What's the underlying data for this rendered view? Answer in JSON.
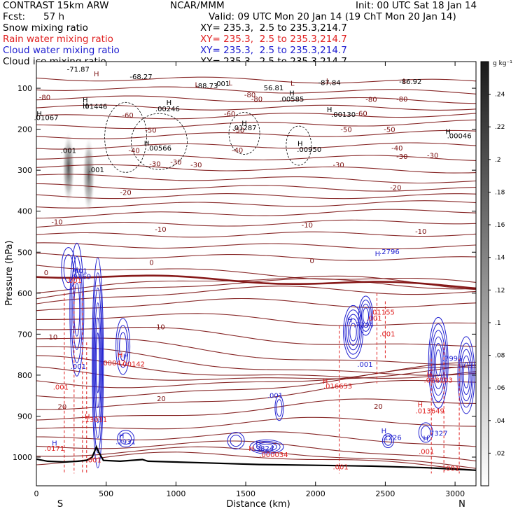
{
  "header": {
    "model": "CONTRAST 15km ARW",
    "org": "NCAR/MMM",
    "init": "Init: 00 UTC Sat 18 Jan 14",
    "fcst_label": "Fcst:",
    "fcst_value": "57 h",
    "valid": "Valid: 09 UTC Mon 20 Jan 14 (19 ChT Mon 20 Jan 14)",
    "fields": [
      {
        "name": "Snow mixing ratio",
        "xy": "XY= 235.3,  2.5 to 235.3,214.7",
        "color": "#000000"
      },
      {
        "name": "Rain water mixing ratio",
        "xy": "XY= 235.3,  2.5 to 235.3,214.7",
        "color": "#e02020"
      },
      {
        "name": "Cloud water mixing ratio",
        "xy": "XY= 235.3,  2.5 to 235.3,214.7",
        "color": "#2020d0"
      },
      {
        "name": "Cloud ice mixing ratio",
        "xy": "XY= 235.3,  2.5 to 235.3,214.7",
        "color": "#000000"
      }
    ]
  },
  "chart_data": {
    "type": "contour cross-section",
    "xlabel": "Distance (km)",
    "ylabel": "Pressure (hPa)",
    "xlim": [
      0,
      3150
    ],
    "ylim": [
      1070,
      35
    ],
    "x_ticks": [
      0,
      500,
      1000,
      1500,
      2000,
      2500,
      3000
    ],
    "y_ticks": [
      100,
      200,
      300,
      400,
      500,
      600,
      700,
      800,
      900,
      1000
    ],
    "x_end_labels": {
      "left": "S",
      "right": "N"
    },
    "colorbar": {
      "unit": "g kg⁻¹",
      "ticks": [
        0.02,
        0.04,
        0.06,
        0.08,
        0.1,
        0.12,
        0.14,
        0.16,
        0.18,
        0.2,
        0.22,
        0.24
      ],
      "tick_labels": [
        ".02",
        ".04",
        ".06",
        ".08",
        ".1",
        ".12",
        ".14",
        ".16",
        ".18",
        ".2",
        ".22",
        ".24"
      ],
      "range": [
        0,
        0.26
      ],
      "colors": [
        "#ffffff",
        "#1a1a1a"
      ]
    },
    "snow_shading": [
      {
        "x": 230,
        "p_top": 205,
        "p_bottom": 385,
        "max": 0.2
      },
      {
        "x": 375,
        "p_top": 215,
        "p_bottom": 410,
        "max": 0.18
      }
    ],
    "temperature_isotherms": {
      "color": "#7a1010",
      "zero_color": "#7a0000",
      "contour_labels": [
        {
          "x": 60,
          "p": 128,
          "t": "-80"
        },
        {
          "x": 655,
          "p": 172,
          "t": "-60"
        },
        {
          "x": 1385,
          "p": 168,
          "t": "-60"
        },
        {
          "x": 2330,
          "p": 167,
          "t": "-60"
        },
        {
          "x": 820,
          "p": 208,
          "t": "-50"
        },
        {
          "x": 1450,
          "p": 208,
          "t": "-50"
        },
        {
          "x": 2220,
          "p": 207,
          "t": "-50"
        },
        {
          "x": 2530,
          "p": 207,
          "t": "-50"
        },
        {
          "x": 1530,
          "p": 122,
          "t": "-80"
        },
        {
          "x": 1580,
          "p": 132,
          "t": "-80"
        },
        {
          "x": 2400,
          "p": 133,
          "t": "-80"
        },
        {
          "x": 2620,
          "p": 132,
          "t": "-80"
        },
        {
          "x": 700,
          "p": 258,
          "t": "-40"
        },
        {
          "x": 1000,
          "p": 286,
          "t": "-30"
        },
        {
          "x": 850,
          "p": 290,
          "t": "-30"
        },
        {
          "x": 2840,
          "p": 270,
          "t": "-30"
        },
        {
          "x": 2585,
          "p": 252,
          "t": "-40"
        },
        {
          "x": 1440,
          "p": 257,
          "t": "-40"
        },
        {
          "x": 1145,
          "p": 293,
          "t": "-30"
        },
        {
          "x": 2165,
          "p": 293,
          "t": "-30"
        },
        {
          "x": 2620,
          "p": 272,
          "t": "-30"
        },
        {
          "x": 640,
          "p": 360,
          "t": "-20"
        },
        {
          "x": 2575,
          "p": 348,
          "t": "-20"
        },
        {
          "x": 148,
          "p": 432,
          "t": "-10"
        },
        {
          "x": 890,
          "p": 450,
          "t": "-10"
        },
        {
          "x": 1940,
          "p": 440,
          "t": "-10"
        },
        {
          "x": 2755,
          "p": 455,
          "t": "-10"
        },
        {
          "x": 70,
          "p": 556,
          "t": "0"
        },
        {
          "x": 825,
          "p": 531,
          "t": "0"
        },
        {
          "x": 1975,
          "p": 527,
          "t": "0"
        },
        {
          "x": 890,
          "p": 688,
          "t": "10"
        },
        {
          "x": 120,
          "p": 713,
          "t": "10"
        },
        {
          "x": 895,
          "p": 863,
          "t": "20"
        },
        {
          "x": 185,
          "p": 883,
          "t": "20"
        },
        {
          "x": 2450,
          "p": 882,
          "t": "20"
        }
      ]
    },
    "cloud_ice_labels": [
      {
        "x": 300,
        "p": 60,
        "t": "-71.87"
      },
      {
        "x": 750,
        "p": 78,
        "t": "-68.27"
      },
      {
        "x": 1220,
        "p": 100,
        "t": "-88.73"
      },
      {
        "x": 1700,
        "p": 105,
        "t": "56.81"
      },
      {
        "x": 2100,
        "p": 92,
        "t": "-87.84"
      },
      {
        "x": 2680,
        "p": 90,
        "t": "-86.92"
      },
      {
        "x": 1330,
        "p": 95,
        "t": ".001"
      },
      {
        "x": 230,
        "p": 258,
        "t": ".001"
      },
      {
        "x": 430,
        "p": 305,
        "t": ".001"
      },
      {
        "x": 70,
        "p": 178,
        "t": ".01067"
      },
      {
        "x": 420,
        "p": 150,
        "t": ".01446"
      },
      {
        "x": 940,
        "p": 156,
        "t": ".00246"
      },
      {
        "x": 1830,
        "p": 132,
        "t": ".00585"
      },
      {
        "x": 2200,
        "p": 170,
        "t": ".00130"
      },
      {
        "x": 1490,
        "p": 202,
        "t": ".01287"
      },
      {
        "x": 880,
        "p": 252,
        "t": ".00566"
      },
      {
        "x": 1955,
        "p": 255,
        "t": ".00950"
      },
      {
        "x": 3030,
        "p": 222,
        "t": ".00046"
      }
    ],
    "cloud_water_labels": [
      {
        "x": 320,
        "p": 565,
        "t": ".9169"
      },
      {
        "x": 310,
        "p": 552,
        "t": ".001"
      },
      {
        "x": 2530,
        "p": 505,
        "t": ".2796"
      },
      {
        "x": 2345,
        "p": 683,
        "t": ".7244"
      },
      {
        "x": 2355,
        "p": 780,
        "t": ".001"
      },
      {
        "x": 300,
        "p": 785,
        "t": ".001"
      },
      {
        "x": 640,
        "p": 968,
        "t": ".2931"
      },
      {
        "x": 1710,
        "p": 856,
        "t": ".001"
      },
      {
        "x": 1630,
        "p": 985,
        "t": ".3824"
      },
      {
        "x": 2545,
        "p": 958,
        "t": ".1226"
      },
      {
        "x": 2875,
        "p": 948,
        "t": ".7327"
      },
      {
        "x": 2980,
        "p": 765,
        "t": ".7995"
      }
    ],
    "rain_labels": [
      {
        "x": 270,
        "p": 575,
        "t": ".001"
      },
      {
        "x": 2420,
        "p": 667,
        "t": ".001"
      },
      {
        "x": 2480,
        "p": 652,
        "t": ".01155"
      },
      {
        "x": 2515,
        "p": 705,
        "t": ".001"
      },
      {
        "x": 550,
        "p": 776,
        "t": ".00047"
      },
      {
        "x": 690,
        "p": 779,
        "t": ".00142"
      },
      {
        "x": 175,
        "p": 835,
        "t": ".001"
      },
      {
        "x": 420,
        "p": 915,
        "t": ".13031"
      },
      {
        "x": 2160,
        "p": 833,
        "t": ".016653"
      },
      {
        "x": 2880,
        "p": 818,
        "t": ".028103"
      },
      {
        "x": 2820,
        "p": 893,
        "t": ".013649"
      },
      {
        "x": 1700,
        "p": 1000,
        "t": ".000034"
      },
      {
        "x": 2795,
        "p": 992,
        "t": ".001"
      },
      {
        "x": 2180,
        "p": 1030,
        "t": ".001"
      },
      {
        "x": 410,
        "p": 1013,
        "t": ".001"
      },
      {
        "x": 130,
        "p": 985,
        "t": ".0171"
      },
      {
        "x": 2975,
        "p": 1033,
        "t": ".001"
      }
    ],
    "max_markers": [
      {
        "x": 430,
        "p": 71,
        "t": "H",
        "c": "#7a1010"
      },
      {
        "x": 350,
        "p": 148,
        "t": "H",
        "c": "#000000"
      },
      {
        "x": 1150,
        "p": 97,
        "t": "L",
        "c": "#7a1010"
      },
      {
        "x": 1390,
        "p": 93,
        "t": "L",
        "c": "#7a1010"
      },
      {
        "x": 1835,
        "p": 94,
        "t": "L",
        "c": "#7a1010"
      },
      {
        "x": 2090,
        "p": 88,
        "t": "L",
        "c": "#7a1010"
      },
      {
        "x": 2640,
        "p": 88,
        "t": "L",
        "c": "#7a1010"
      },
      {
        "x": 20,
        "p": 168,
        "t": "H",
        "c": "#000000"
      },
      {
        "x": 350,
        "p": 135,
        "t": "H",
        "c": "#000000"
      },
      {
        "x": 950,
        "p": 141,
        "t": "H",
        "c": "#000000"
      },
      {
        "x": 1830,
        "p": 118,
        "t": "H",
        "c": "#000000"
      },
      {
        "x": 2100,
        "p": 158,
        "t": "H",
        "c": "#000000"
      },
      {
        "x": 1490,
        "p": 191,
        "t": "H",
        "c": "#000000"
      },
      {
        "x": 790,
        "p": 240,
        "t": "H",
        "c": "#000000"
      },
      {
        "x": 1890,
        "p": 241,
        "t": "H",
        "c": "#000000"
      },
      {
        "x": 2950,
        "p": 212,
        "t": "H",
        "c": "#000000"
      },
      {
        "x": 280,
        "p": 548,
        "t": "H",
        "c": "#2020d0"
      },
      {
        "x": 2445,
        "p": 510,
        "t": "H",
        "c": "#2020d0"
      },
      {
        "x": 2245,
        "p": 671,
        "t": "H",
        "c": "#2020d0"
      },
      {
        "x": 600,
        "p": 757,
        "t": "H",
        "c": "#e02020"
      },
      {
        "x": 640,
        "p": 760,
        "t": "H",
        "c": "#2020d0"
      },
      {
        "x": 2070,
        "p": 821,
        "t": "H",
        "c": "#e02020"
      },
      {
        "x": 2815,
        "p": 804,
        "t": "H",
        "c": "#e02020"
      },
      {
        "x": 2750,
        "p": 878,
        "t": "H",
        "c": "#e02020"
      },
      {
        "x": 365,
        "p": 907,
        "t": "H",
        "c": "#e02020"
      },
      {
        "x": 130,
        "p": 972,
        "t": "H",
        "c": "#2020d0"
      },
      {
        "x": 610,
        "p": 955,
        "t": "H",
        "c": "#2020d0"
      },
      {
        "x": 1590,
        "p": 972,
        "t": "H",
        "c": "#2020d0"
      },
      {
        "x": 1540,
        "p": 985,
        "t": "H",
        "c": "#e02020"
      },
      {
        "x": 2490,
        "p": 942,
        "t": "H",
        "c": "#2020d0"
      },
      {
        "x": 2790,
        "p": 960,
        "t": "H",
        "c": "#2020d0"
      }
    ],
    "terrain_surface_pressure": [
      [
        0,
        1005
      ],
      [
        80,
        1010
      ],
      [
        200,
        1012
      ],
      [
        300,
        1010
      ],
      [
        360,
        1008
      ],
      [
        400,
        1000
      ],
      [
        430,
        975
      ],
      [
        450,
        990
      ],
      [
        480,
        1008
      ],
      [
        600,
        1010
      ],
      [
        760,
        1006
      ],
      [
        800,
        1010
      ],
      [
        1200,
        1014
      ],
      [
        1600,
        1018
      ],
      [
        2000,
        1020
      ],
      [
        2400,
        1022
      ],
      [
        2800,
        1026
      ],
      [
        3150,
        1032
      ]
    ]
  }
}
